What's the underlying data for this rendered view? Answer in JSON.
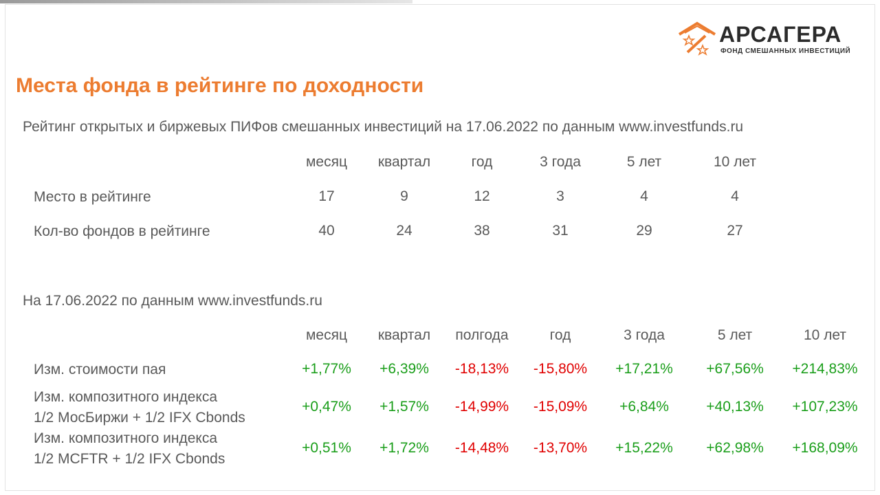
{
  "brand": {
    "name": "АРСАГЕРА",
    "tagline": "ФОНД СМЕШАННЫХ ИНВЕСТИЦИЙ",
    "accent_color": "#ec7c30",
    "logo_icon": "house-star-percent-icon"
  },
  "title": "Места фонда в рейтинге по доходности",
  "rating": {
    "caption": "Рейтинг открытых и биржевых ПИФов смешанных инвестиций на 17.06.2022 по данным www.investfunds.ru",
    "columns": [
      "месяц",
      "квартал",
      "год",
      "3 года",
      "5 лет",
      "10 лет"
    ],
    "rows": [
      {
        "label": "Место в рейтинге",
        "values": [
          "17",
          "9",
          "12",
          "3",
          "4",
          "4"
        ]
      },
      {
        "label": "Кол-во фондов в рейтинге",
        "values": [
          "40",
          "24",
          "38",
          "31",
          "29",
          "27"
        ]
      }
    ]
  },
  "returns": {
    "caption": "На 17.06.2022 по данным www.investfunds.ru",
    "columns": [
      "месяц",
      "квартал",
      "полгода",
      "год",
      "3 года",
      "5 лет",
      "10 лет"
    ],
    "rows": [
      {
        "label_lines": [
          "Изм. стоимости пая"
        ],
        "values": [
          "+1,77%",
          "+6,39%",
          "-18,13%",
          "-15,80%",
          "+17,21%",
          "+67,56%",
          "+214,83%"
        ]
      },
      {
        "label_lines": [
          "Изм. композитного индекса",
          "1/2 МосБиржи + 1/2 IFX Cbonds"
        ],
        "values": [
          "+0,47%",
          "+1,57%",
          "-14,99%",
          "-15,09%",
          "+6,84%",
          "+40,13%",
          "+107,23%"
        ]
      },
      {
        "label_lines": [
          "Изм. композитного индекса",
          "1/2 MCFTR + 1/2 IFX Cbonds"
        ],
        "values": [
          "+0,51%",
          "+1,72%",
          "-14,48%",
          "-13,70%",
          "+15,22%",
          "+62,98%",
          "+168,09%"
        ]
      }
    ],
    "positive_color": "#1a9e1a",
    "negative_color": "#e00000"
  }
}
